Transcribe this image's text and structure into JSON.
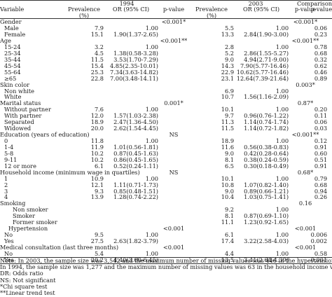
{
  "header": {
    "year_1994": "1994",
    "year_2003": "2003",
    "comparison_1": "Comparison",
    "comparison_2": "p-value",
    "variable": "Variable",
    "prevalence_1994": "Prevalence",
    "pct_1994": "(%)",
    "or_1994": "OR (95% CI)",
    "pvalue_1994": "p-value",
    "prevalence_2003": "Prevalence",
    "pct_2003": "(%)",
    "or_2003": "OR (95% CI)",
    "pvalue_2003": "p-value"
  },
  "rows": [
    {
      "label": "Gender",
      "level": 0,
      "p94": "<0.001*",
      "p03": "<0.001*",
      "cmp": ""
    },
    {
      "label": "Male",
      "level": 1,
      "prev94": "7.9",
      "or94": "1.00",
      "prev03": "5.5",
      "or03": "1.00",
      "cmp": "0.06"
    },
    {
      "label": "Female",
      "level": 1,
      "prev94": "15.1",
      "or94": "1.90(1.37-2.65)",
      "prev03": "13.3",
      "or03": "2.84(1.90-3.00)",
      "cmp": "0.23"
    },
    {
      "label": "Age",
      "level": 0,
      "p94": "<0.001**",
      "p03": "<0.001**",
      "cmp": ""
    },
    {
      "label": "15-24",
      "level": 1,
      "prev94": "3.2",
      "or94": "1.00",
      "prev03": "2.8",
      "or03": "1.00",
      "cmp": "0.78"
    },
    {
      "label": "25-34",
      "level": 1,
      "prev94": "4.5",
      "or94": "1.38(0.58-3.28)",
      "prev03": "5.2",
      "or03": "2.86(1.55-5.27)",
      "cmp": "0.68"
    },
    {
      "label": "35-44",
      "level": 1,
      "prev94": "11.5",
      "or94": "3.53(1.70-7.29)",
      "prev03": "9.0",
      "or03": "4.94(2.71-9.00)",
      "cmp": "0.32"
    },
    {
      "label": "45-54",
      "level": 1,
      "prev94": "15.4",
      "or94": "4.85(2.35-10.01)",
      "prev03": "14.3",
      "or03": "7.90(5.77-16.46)",
      "cmp": "0.62"
    },
    {
      "label": "55-64",
      "level": 1,
      "prev94": "25.3",
      "or94": "7.34(3.63-14.82)",
      "prev03": "22.9",
      "or03": "10.62(5.77-16.46)",
      "cmp": "0.46"
    },
    {
      "label": "≥65",
      "level": 1,
      "prev94": "22.8",
      "or94": "7.00(3.48-14.11)",
      "prev03": "23.1",
      "or03": "12.64(7.39-21.64)",
      "cmp": "0.89"
    },
    {
      "label": "Skin color",
      "level": 0,
      "p03": "0.003*",
      "cmp": ""
    },
    {
      "label": "Non white",
      "level": 1,
      "prev03": "6.9",
      "or03": "1.00",
      "cmp": ""
    },
    {
      "label": "White",
      "level": 1,
      "prev03": "10.7",
      "or03": "1.56(1.16-2.09)",
      "cmp": ""
    },
    {
      "label": "Marital status",
      "level": 0,
      "p94": "0.001*",
      "p03": "0.87*",
      "cmp": ""
    },
    {
      "label": "Without partner",
      "level": 1,
      "prev94": "7.6",
      "or94": "1.00",
      "prev03": "10.1",
      "or03": "1.00",
      "cmp": "0.20"
    },
    {
      "label": "With partner",
      "level": 1,
      "prev94": "12.0",
      "or94": "1.57(1.03-2.38)",
      "prev03": "9.7",
      "or03": "0.96(0.76-1.22)",
      "cmp": "0.11"
    },
    {
      "label": "Separated",
      "level": 1,
      "prev94": "18.9",
      "or94": "2.47(1.36-4.50)",
      "prev03": "11.3",
      "or03": "1.14(0.74-1.74)",
      "cmp": "0.06"
    },
    {
      "label": "Widowed",
      "level": 1,
      "prev94": "20.0",
      "or94": "2.62(1.54-4.45)",
      "prev03": "11.5",
      "or03": "1.14(0.72-1.82)",
      "cmp": "0.03"
    },
    {
      "label": "Education (years of education)",
      "level": 0,
      "p94": "NS",
      "p03": "<0.001**",
      "cmp": ""
    },
    {
      "label": "0",
      "level": 1,
      "prev94": "11.8",
      "or94": "1.00",
      "prev03": "18.9",
      "or03": "1.00",
      "cmp": "0.12"
    },
    {
      "label": "1-4",
      "level": 1,
      "prev94": "11.9",
      "or94": "1.01(0.56-1.81)",
      "prev03": "11.6",
      "or03": "0.56(0.38-0.83)",
      "cmp": "0.91"
    },
    {
      "label": "5-8",
      "level": 1,
      "prev94": "10.2",
      "or94": "0.87(0.45-1.63)",
      "prev03": "9.0",
      "or03": "0.42(0.28-0.64)",
      "cmp": "0.60"
    },
    {
      "label": "9-11",
      "level": 1,
      "prev94": "10.2",
      "or94": "0.86(0.45-1.65)",
      "prev03": "8.1",
      "or03": "0.38(0.24-0.59)",
      "cmp": "0.51"
    },
    {
      "label": "12 or more",
      "level": 1,
      "prev94": "6.1",
      "or94": "0.52(0.24-1.11)",
      "prev03": "6.5",
      "or03": "0.30(0.18-0.49)",
      "cmp": "0.91"
    },
    {
      "label": "Household income (minimum wage in quartiles)",
      "level": 0,
      "p94": "NS",
      "p03": "0.68*",
      "cmp": ""
    },
    {
      "label": "1",
      "level": 1,
      "prev94": "10.9",
      "or94": "1.00",
      "prev03": "10.1",
      "or03": "1.00",
      "cmp": "0.79"
    },
    {
      "label": "2",
      "level": 1,
      "prev94": "12.1",
      "or94": "1.11(0.71-1.73)",
      "prev03": "10.8",
      "or03": "1.07(0.82-1.40)",
      "cmp": "0.68"
    },
    {
      "label": "3",
      "level": 1,
      "prev94": "9.3",
      "or94": "0.85(0.48-1.51)",
      "prev03": "9.0",
      "or03": "0.89(0.66-1.21)",
      "cmp": "0.94"
    },
    {
      "label": "4",
      "level": 1,
      "prev94": "13.9",
      "or94": "1.28(0.74-2.22)",
      "prev03": "10.4",
      "or03": "1.03(0.75-1.41)",
      "cmp": "0.26"
    },
    {
      "label": "Smoking",
      "level": 0,
      "p03": "0.16",
      "cmp": ""
    },
    {
      "label": "Non smoker",
      "level": 2,
      "prev03": "9.2",
      "or03": "1.00",
      "cmp": ""
    },
    {
      "label": "Smoker",
      "level": 2,
      "prev03": "8.1",
      "or03": "0.87(0.69-1.10)",
      "cmp": ""
    },
    {
      "label": "Former smoker",
      "level": 2,
      "prev03": "11.1",
      "or03": "1.23(0.92-1.65)",
      "cmp": ""
    },
    {
      "label": "Hypertension",
      "level": 3,
      "p94": "<0.001",
      "p03": "<0.001",
      "cmp": ""
    },
    {
      "label": "No",
      "level": 1,
      "prev94": "9.5",
      "or94": "1.00",
      "prev03": "6.1",
      "or03": "1.00",
      "cmp": "0.006"
    },
    {
      "label": "Yes",
      "level": 1,
      "prev94": "27.5",
      "or94": "2.63(1.82-3.79)",
      "prev03": "17.4",
      "or03": "3.22(2.58-4.03)",
      "cmp": "0.002"
    },
    {
      "label": "Medical consultation (last three months)",
      "level": 0,
      "p94": "<0.001",
      "p03": "<0.001",
      "cmp": ""
    },
    {
      "label": "No",
      "level": 1,
      "prev94": "5.4",
      "or94": "1.00",
      "prev03": "4.4",
      "or03": "1.00",
      "cmp": "0.58"
    },
    {
      "label": "Yes",
      "level": 1,
      "prev94": "20.2",
      "or94": "4.40(3.00-6.45)",
      "prev03": "13.5",
      "or03": "3.41(2.64-4.39)",
      "cmp": "0.001"
    }
  ],
  "notes": [
    "Note: In 2003, the sample size was 3,542 and the maximum number of missing values was 446 in the hypertension variable.",
    "In 1994, the sample size was 1,277 and the maximum number of missing values was 63 in the household income variable.",
    "DR: Odds ratio",
    "NS: Not significant",
    "*Chi square test",
    "**Linear trend test"
  ]
}
